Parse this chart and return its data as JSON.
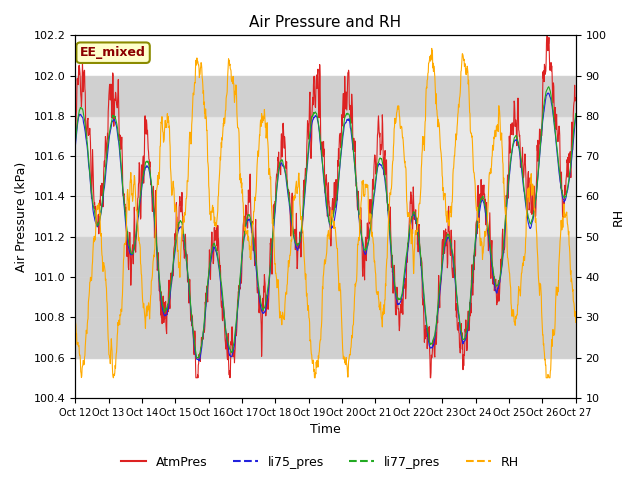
{
  "title": "Air Pressure and RH",
  "xlabel": "Time",
  "ylabel_left": "Air Pressure (kPa)",
  "ylabel_right": "RH",
  "annotation_text": "EE_mixed",
  "ylim_left": [
    100.4,
    102.2
  ],
  "ylim_right": [
    10,
    100
  ],
  "x_tick_labels": [
    "Oct 12",
    "Oct 13",
    "Oct 14",
    "Oct 15",
    "Oct 16",
    "Oct 17",
    "Oct 18",
    "Oct 19",
    "Oct 20",
    "Oct 21",
    "Oct 22",
    "Oct 23",
    "Oct 24",
    "Oct 25",
    "Oct 26",
    "Oct 27"
  ],
  "color_atm": "#dd2222",
  "color_li75": "#2222dd",
  "color_li77": "#22aa22",
  "color_rh": "#ffaa00",
  "legend_labels": [
    "AtmPres",
    "li75_pres",
    "li77_pres",
    "RH"
  ],
  "bg_color_light": "#e8e8e8",
  "bg_color_dark": "#d0d0d0",
  "seed": 42
}
